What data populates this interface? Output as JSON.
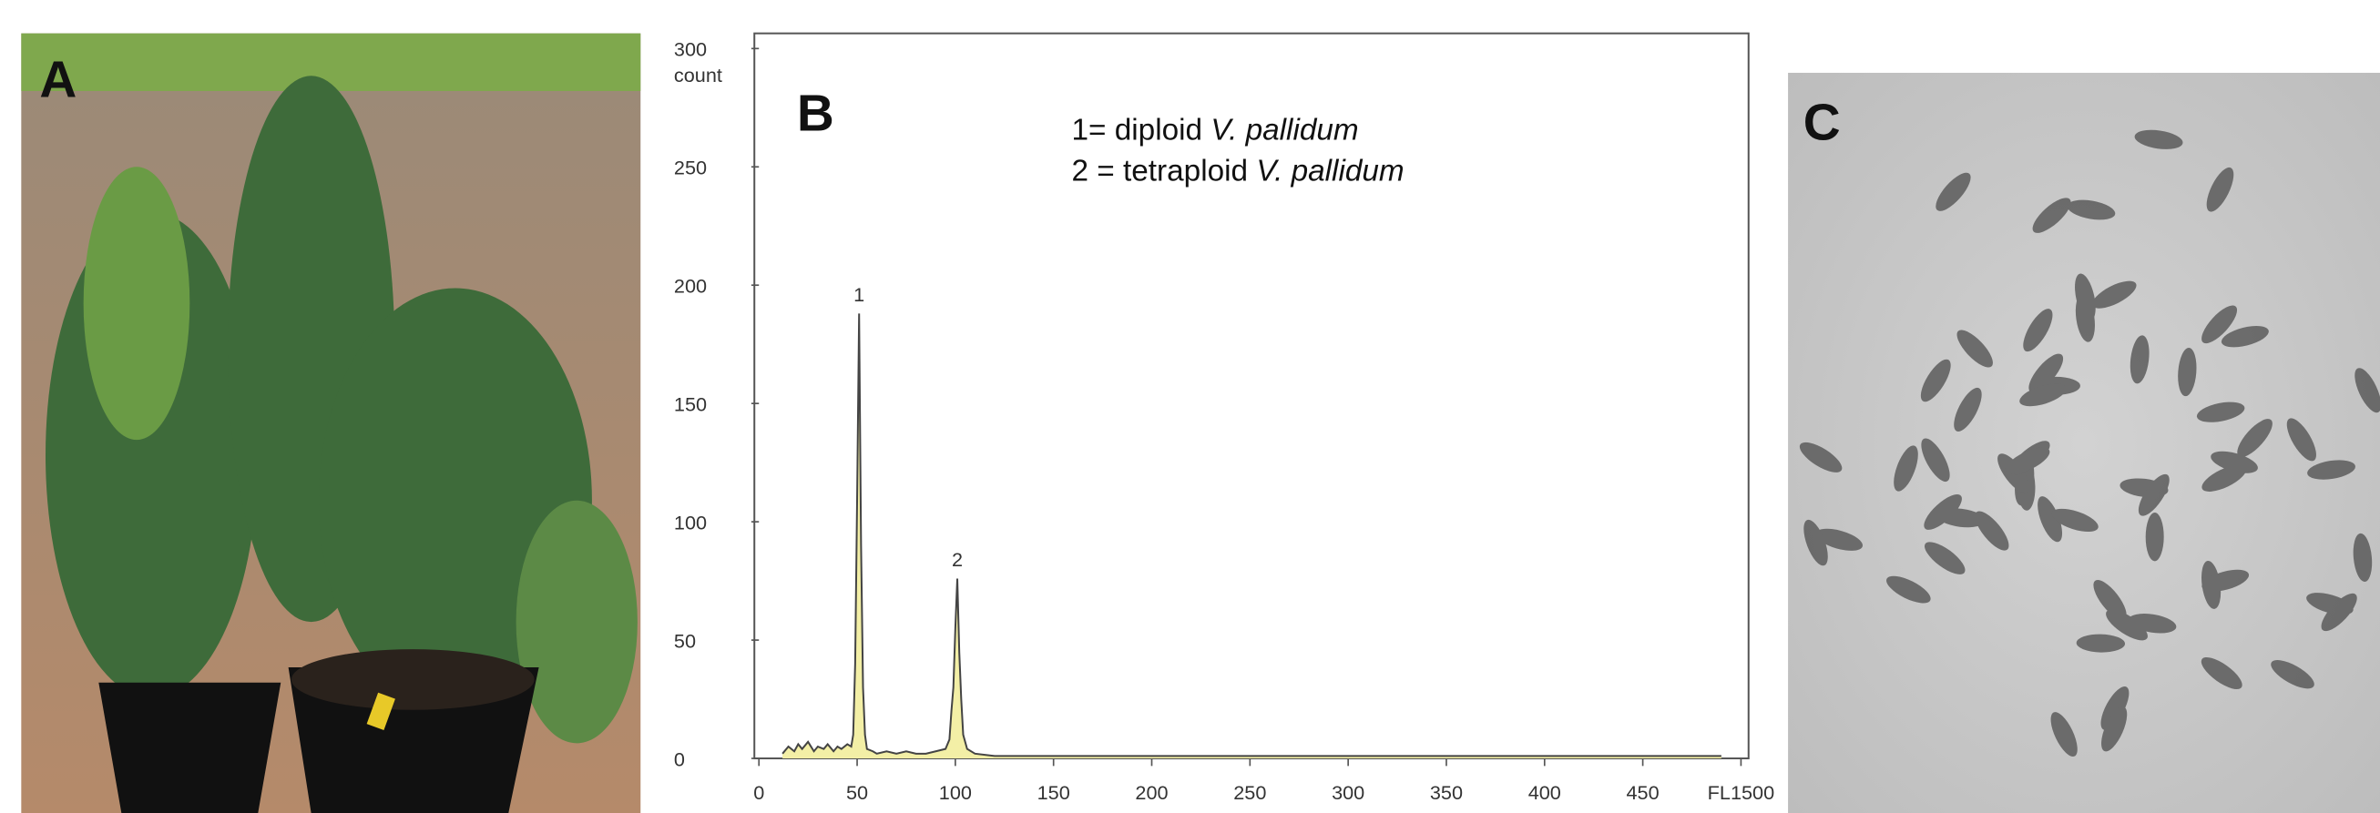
{
  "panel_labels": [
    "A",
    "B",
    "C"
  ],
  "legend_lines": [
    {
      "text": "1= diploid ",
      "species": "V. pallidum"
    },
    {
      "text": "2 = tetraploid ",
      "species": "V. pallidum"
    }
  ],
  "chart_data": {
    "type": "area",
    "ylabel": "count",
    "x": [
      12,
      15,
      18,
      20,
      22,
      25,
      28,
      30,
      33,
      35,
      38,
      40,
      42,
      45,
      47,
      48,
      49,
      50,
      51,
      52,
      53,
      54,
      55,
      58,
      60,
      65,
      70,
      75,
      80,
      85,
      90,
      95,
      97,
      98,
      99,
      100,
      101,
      102,
      103,
      104,
      106,
      110,
      120,
      150,
      200,
      300,
      400,
      490
    ],
    "values": [
      2,
      5,
      3,
      6,
      4,
      7,
      3,
      5,
      4,
      6,
      3,
      5,
      4,
      6,
      5,
      10,
      40,
      110,
      188,
      90,
      30,
      10,
      4,
      3,
      2,
      3,
      2,
      3,
      2,
      2,
      3,
      4,
      8,
      20,
      30,
      55,
      76,
      45,
      25,
      10,
      4,
      2,
      1,
      1,
      1,
      1,
      1,
      1
    ],
    "color": "#f3efa6",
    "line_color": "#444444",
    "annotations": [
      {
        "text": "1",
        "x": 51
      },
      {
        "text": "2",
        "x": 101
      }
    ],
    "xlim": [
      0,
      500
    ],
    "ylim": [
      0,
      300
    ],
    "xticks": [
      0,
      50,
      100,
      150,
      200,
      250,
      300,
      350,
      400,
      450,
      {
        "value": 500,
        "label": "FL1500"
      }
    ],
    "yticks": [
      0,
      50,
      100,
      150,
      200,
      250,
      300
    ],
    "grid": false
  }
}
